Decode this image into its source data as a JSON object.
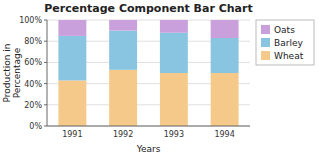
{
  "chart_data": {
    "type": "bar",
    "stacked": true,
    "title": "Percentage Component Bar Chart",
    "xlabel": "Years",
    "ylabel": "Production in\nPercentage",
    "categories": [
      "1991",
      "1992",
      "1993",
      "1994"
    ],
    "series": [
      {
        "name": "Wheat",
        "color": "#F5C98A",
        "values": [
          43,
          53,
          50,
          50
        ]
      },
      {
        "name": "Barley",
        "color": "#89C4E1",
        "values": [
          42,
          37,
          38,
          33
        ]
      },
      {
        "name": "Oats",
        "color": "#C9A0DC",
        "values": [
          15,
          10,
          12,
          17
        ]
      }
    ],
    "ylim": [
      0,
      100
    ],
    "yticks": [
      {
        "value": 0,
        "label": "0%"
      },
      {
        "value": 20,
        "label": "20%"
      },
      {
        "value": 40,
        "label": "40%"
      },
      {
        "value": 60,
        "label": "60%"
      },
      {
        "value": 80,
        "label": "80%"
      },
      {
        "value": 100,
        "label": "100%"
      }
    ],
    "grid": true,
    "legend": "right"
  }
}
